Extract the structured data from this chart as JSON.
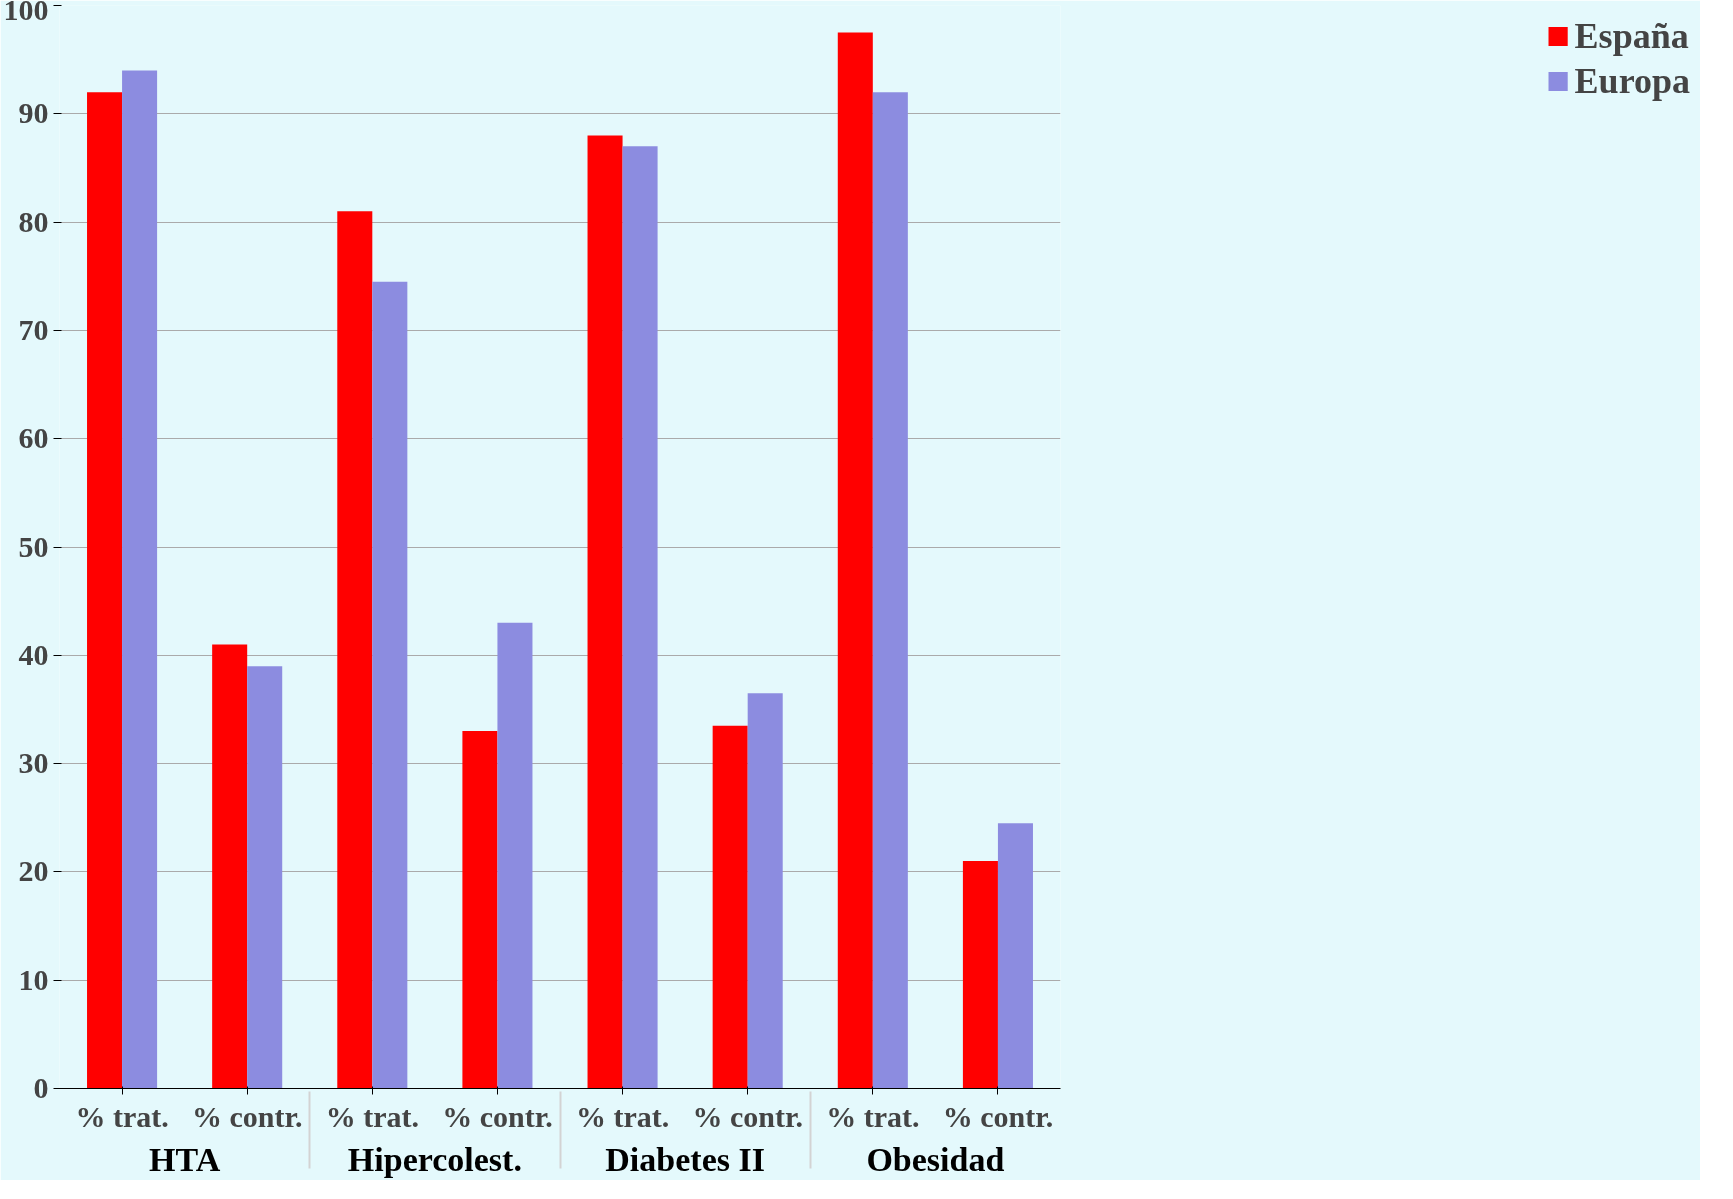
{
  "chart_data": {
    "type": "bar",
    "categories": [
      "% trat.",
      "% contr.",
      "% trat.",
      "% contr.",
      "% trat.",
      "% contr.",
      "% trat.",
      "% contr."
    ],
    "annotations": [
      "HTA",
      "Hipercolest.",
      "Diabetes II",
      "Obesidad"
    ],
    "series": [
      {
        "name": "España",
        "color": "#ff0000",
        "values": [
          92,
          41,
          81,
          33,
          88,
          33.5,
          97.5,
          21
        ]
      },
      {
        "name": "Europa",
        "color": "#8c8ce0",
        "values": [
          94,
          39,
          74.5,
          43,
          87,
          36.5,
          92,
          24.5
        ]
      }
    ],
    "ylim": [
      0,
      100
    ],
    "yticks": [
      0,
      10,
      20,
      30,
      40,
      50,
      60,
      70,
      80,
      90,
      100
    ],
    "grid": "y",
    "legend": "right"
  }
}
